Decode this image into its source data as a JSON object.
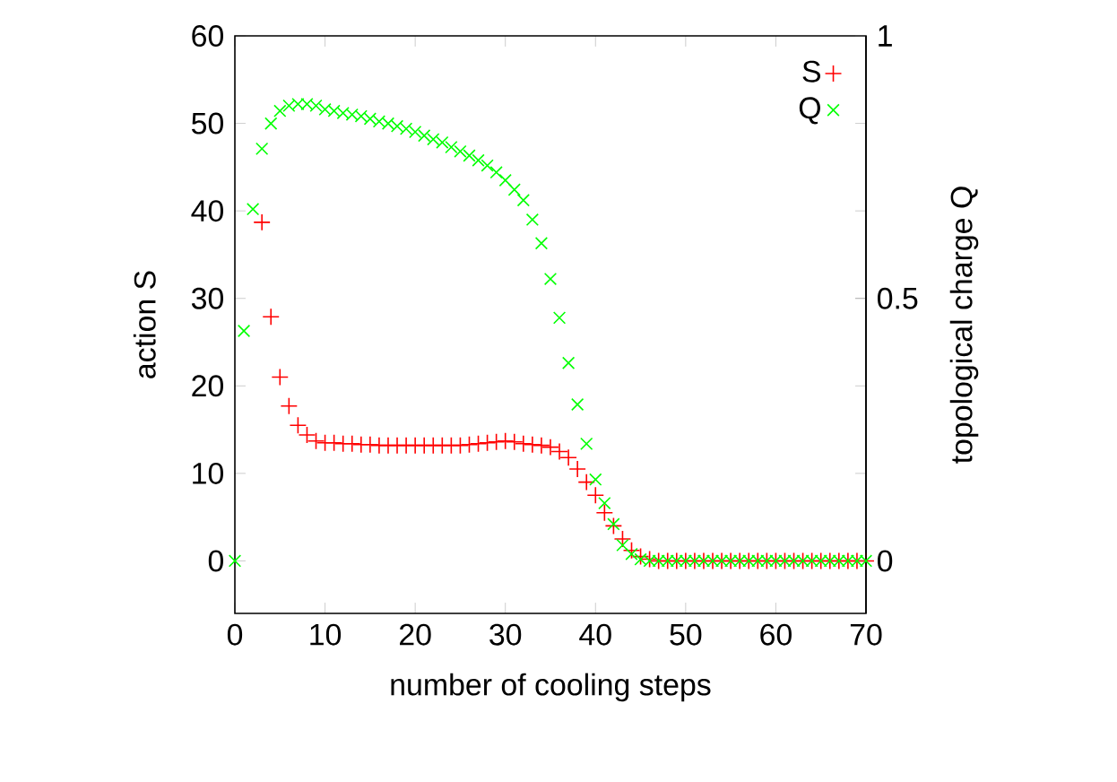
{
  "chart_data": {
    "type": "scatter",
    "xlabel": "number of cooling steps",
    "ylabel": "action S",
    "y2label": "topological charge Q",
    "x": [
      0,
      1,
      2,
      3,
      4,
      5,
      6,
      7,
      8,
      9,
      10,
      11,
      12,
      13,
      14,
      15,
      16,
      17,
      18,
      19,
      20,
      21,
      22,
      23,
      24,
      25,
      26,
      27,
      28,
      29,
      30,
      31,
      32,
      33,
      34,
      35,
      36,
      37,
      38,
      39,
      40,
      41,
      42,
      43,
      44,
      45,
      46,
      47,
      48,
      49,
      50,
      51,
      52,
      53,
      54,
      55,
      56,
      57,
      58,
      59,
      60,
      61,
      62,
      63,
      64,
      65,
      66,
      67,
      68,
      69,
      70
    ],
    "series": [
      {
        "name": "S",
        "color": "#ff0000",
        "marker": "plus",
        "values": [
          null,
          null,
          null,
          38.7,
          27.9,
          21,
          17.7,
          15.5,
          14.4,
          13.7,
          13.5,
          13.5,
          13.4,
          13.4,
          13.3,
          13.3,
          13.2,
          13.2,
          13.2,
          13.2,
          13.2,
          13.2,
          13.2,
          13.2,
          13.2,
          13.2,
          13.3,
          13.4,
          13.5,
          13.6,
          13.7,
          13.6,
          13.4,
          13.3,
          13.2,
          13,
          12.5,
          11.8,
          10.5,
          9,
          7.5,
          5.5,
          4,
          2.5,
          1.2,
          0.5,
          0.2,
          0,
          0,
          0,
          0,
          0,
          0,
          0,
          0,
          0,
          0,
          0,
          0,
          0,
          0,
          0,
          0,
          0,
          0,
          0,
          0,
          0,
          0,
          0,
          0
        ]
      },
      {
        "name": "Q",
        "color": "#00ff00",
        "marker": "cross",
        "axis": "y2",
        "values": [
          0,
          0.438,
          0.67,
          0.785,
          0.833,
          0.857,
          0.867,
          0.87,
          0.87,
          0.867,
          0.86,
          0.857,
          0.853,
          0.85,
          0.847,
          0.842,
          0.837,
          0.833,
          0.828,
          0.823,
          0.817,
          0.81,
          0.803,
          0.797,
          0.788,
          0.78,
          0.772,
          0.763,
          0.753,
          0.74,
          0.725,
          0.707,
          0.687,
          0.65,
          0.605,
          0.537,
          0.463,
          0.377,
          0.298,
          0.223,
          0.155,
          0.11,
          0.07,
          0.03,
          0.013,
          0.003,
          0,
          0,
          0,
          0,
          0,
          0,
          0,
          0,
          0,
          0,
          0,
          0,
          0,
          0,
          0,
          0,
          0,
          0,
          0,
          0,
          0,
          0,
          0,
          0,
          0
        ]
      }
    ],
    "xlim": [
      0,
      70
    ],
    "ylim": [
      -6,
      60
    ],
    "y2lim": [
      -0.1,
      1
    ],
    "xticks": [
      0,
      10,
      20,
      30,
      40,
      50,
      60,
      70
    ],
    "yticks": [
      0,
      10,
      20,
      30,
      40,
      50,
      60
    ],
    "y2ticks": [
      0,
      0.5,
      1
    ],
    "legend": "top right",
    "grid": false
  }
}
